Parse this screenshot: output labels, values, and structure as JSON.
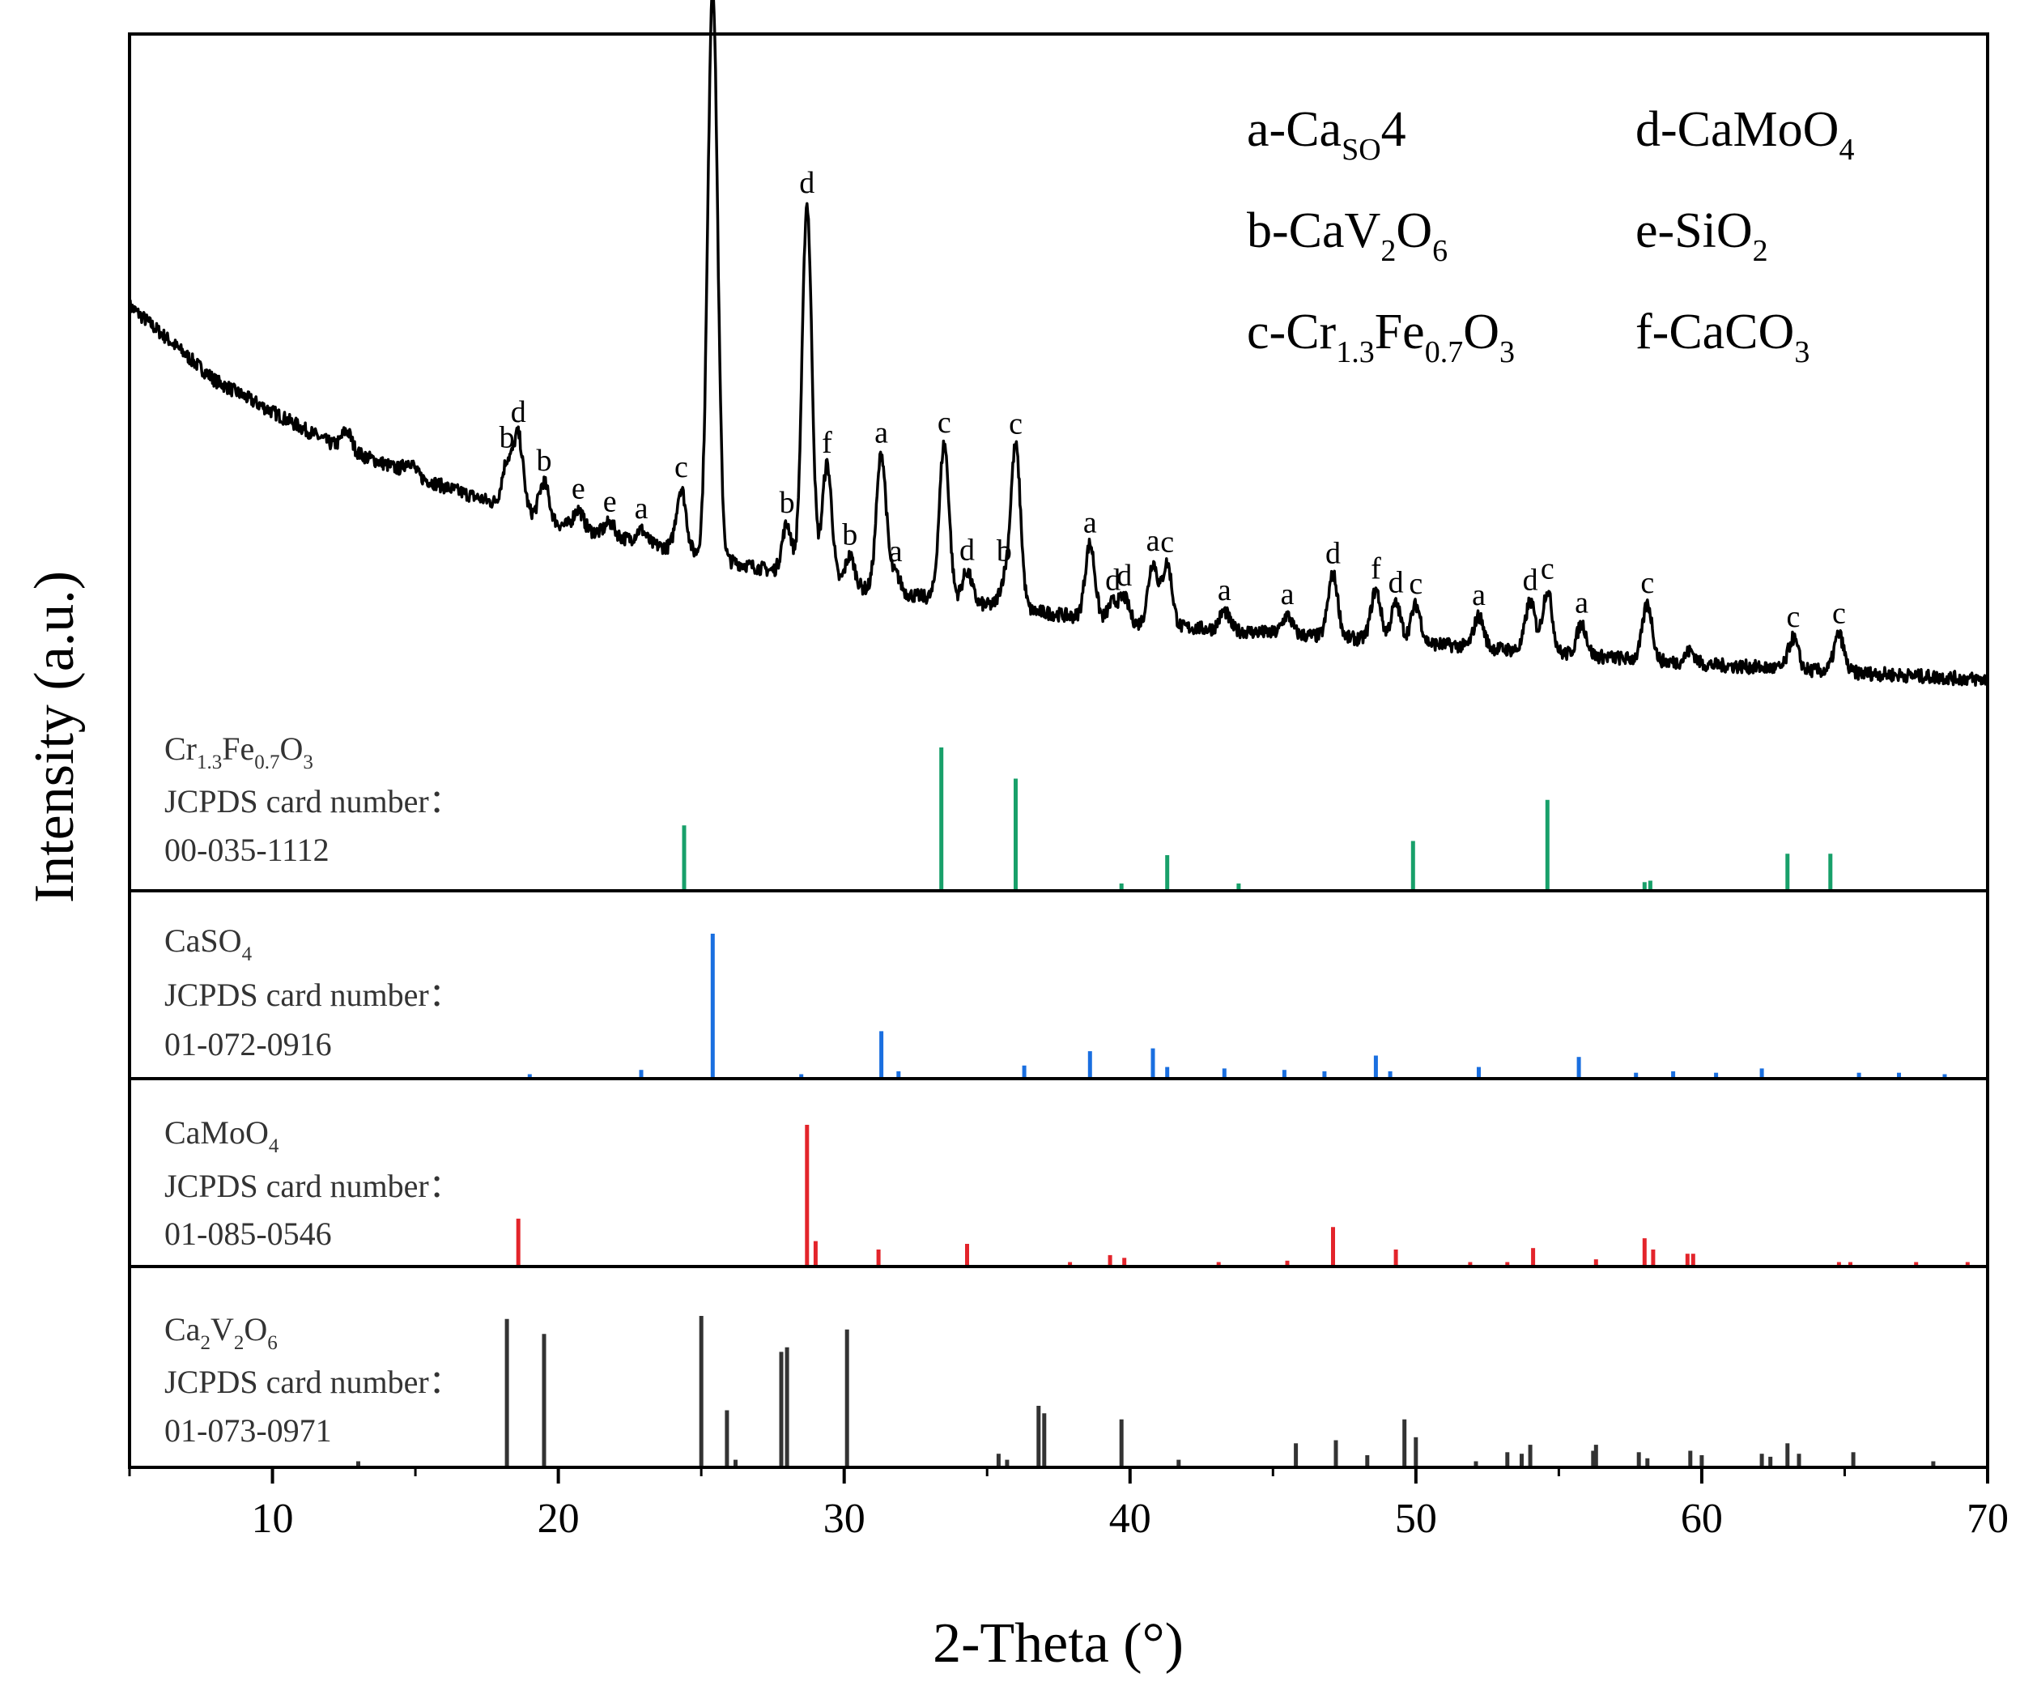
{
  "chart_data": {
    "type": "line",
    "xlabel": "2-Theta (°)",
    "ylabel": "Intensity (a.u.)",
    "xlim": [
      5,
      70
    ],
    "xticks": [
      "10",
      "20",
      "30",
      "40",
      "50",
      "60",
      "70"
    ],
    "legend": {
      "placement": "top-right",
      "entries": [
        {
          "letter": "a",
          "phase": [
            "Ca",
            "SO",
            "4"
          ]
        },
        {
          "letter": "d",
          "phase": [
            "CaMoO",
            "4"
          ]
        },
        {
          "letter": "b",
          "phase": [
            "CaV",
            "2",
            "O",
            "6"
          ]
        },
        {
          "letter": "e",
          "phase": [
            "SiO",
            "2"
          ]
        },
        {
          "letter": "c",
          "phase": [
            "Cr",
            "1.3",
            "Fe",
            "0.7",
            "O",
            "3"
          ]
        },
        {
          "letter": "f",
          "phase": [
            "CaCO",
            "3"
          ]
        }
      ]
    },
    "pattern": {
      "name": "sample XRD",
      "color": "#000000",
      "baseline": [
        [
          5,
          0.62
        ],
        [
          8,
          0.5
        ],
        [
          12,
          0.4
        ],
        [
          16,
          0.33
        ],
        [
          20,
          0.27
        ],
        [
          25,
          0.22
        ],
        [
          30,
          0.17
        ],
        [
          35,
          0.14
        ],
        [
          40,
          0.11
        ],
        [
          50,
          0.08
        ],
        [
          60,
          0.045
        ],
        [
          70,
          0.02
        ]
      ],
      "peaks": [
        {
          "x": 18.2,
          "h": 0.07,
          "label": "b"
        },
        {
          "x": 18.6,
          "h": 0.12,
          "label": "d"
        },
        {
          "x": 19.5,
          "h": 0.06,
          "label": "b"
        },
        {
          "x": 20.7,
          "h": 0.03,
          "label": "e"
        },
        {
          "x": 21.8,
          "h": 0.02,
          "label": "e"
        },
        {
          "x": 22.9,
          "h": 0.02,
          "label": "a"
        },
        {
          "x": 24.3,
          "h": 0.1,
          "label": "c"
        },
        {
          "x": 25.4,
          "h": 0.92,
          "label": "a"
        },
        {
          "x": 28.0,
          "h": 0.08,
          "label": "b"
        },
        {
          "x": 28.7,
          "h": 0.6,
          "label": "d"
        },
        {
          "x": 29.4,
          "h": 0.19,
          "label": "f"
        },
        {
          "x": 30.2,
          "h": 0.05,
          "label": "b"
        },
        {
          "x": 31.3,
          "h": 0.22,
          "label": "a"
        },
        {
          "x": 31.8,
          "h": 0.03,
          "label": "a"
        },
        {
          "x": 33.5,
          "h": 0.25,
          "label": "c"
        },
        {
          "x": 34.3,
          "h": 0.05,
          "label": "d"
        },
        {
          "x": 35.6,
          "h": 0.04,
          "label": "b"
        },
        {
          "x": 36.0,
          "h": 0.26,
          "label": "c"
        },
        {
          "x": 38.6,
          "h": 0.12,
          "label": "a"
        },
        {
          "x": 39.4,
          "h": 0.03,
          "label": "d"
        },
        {
          "x": 39.8,
          "h": 0.04,
          "label": "d"
        },
        {
          "x": 40.8,
          "h": 0.1,
          "label": "a"
        },
        {
          "x": 41.3,
          "h": 0.1,
          "label": "c"
        },
        {
          "x": 43.3,
          "h": 0.03,
          "label": "a"
        },
        {
          "x": 45.5,
          "h": 0.03,
          "label": "a"
        },
        {
          "x": 47.1,
          "h": 0.1,
          "label": "d"
        },
        {
          "x": 48.6,
          "h": 0.08,
          "label": "f"
        },
        {
          "x": 49.3,
          "h": 0.06,
          "label": "d"
        },
        {
          "x": 50.0,
          "h": 0.06,
          "label": "c"
        },
        {
          "x": 52.2,
          "h": 0.05,
          "label": "a"
        },
        {
          "x": 54.0,
          "h": 0.08,
          "label": "d"
        },
        {
          "x": 54.6,
          "h": 0.1,
          "label": "c"
        },
        {
          "x": 55.8,
          "h": 0.05,
          "label": "a"
        },
        {
          "x": 58.1,
          "h": 0.09,
          "label": "c"
        },
        {
          "x": 63.2,
          "h": 0.05,
          "label": "c"
        },
        {
          "x": 64.8,
          "h": 0.06,
          "label": "c"
        },
        {
          "x": 12.6,
          "h": 0.03,
          "label": ""
        },
        {
          "x": 14.8,
          "h": 0.02,
          "label": ""
        },
        {
          "x": 59.6,
          "h": 0.02,
          "label": ""
        }
      ]
    },
    "references": [
      {
        "phase": [
          "Cr",
          "1.3",
          "Fe",
          "0.7",
          "O",
          "3"
        ],
        "card_text": "JCPDS card number：",
        "card_number": "00-035-1112",
        "color": "#18a06a",
        "sticks": [
          [
            24.4,
            0.45
          ],
          [
            33.4,
            1.0
          ],
          [
            36.0,
            0.78
          ],
          [
            39.7,
            0.04
          ],
          [
            41.3,
            0.24
          ],
          [
            43.8,
            0.04
          ],
          [
            49.9,
            0.34
          ],
          [
            54.6,
            0.63
          ],
          [
            58.0,
            0.05
          ],
          [
            58.2,
            0.06
          ],
          [
            63.0,
            0.25
          ],
          [
            64.5,
            0.25
          ]
        ]
      },
      {
        "phase": [
          "CaSO",
          "4"
        ],
        "card_text": "JCPDS card number：",
        "card_number": "01-072-0916",
        "color": "#1a6fe0",
        "sticks": [
          [
            19.0,
            0.02
          ],
          [
            22.9,
            0.05
          ],
          [
            25.4,
            1.0
          ],
          [
            28.5,
            0.02
          ],
          [
            31.3,
            0.32
          ],
          [
            31.9,
            0.04
          ],
          [
            36.3,
            0.08
          ],
          [
            38.6,
            0.18
          ],
          [
            40.8,
            0.2
          ],
          [
            41.3,
            0.07
          ],
          [
            43.3,
            0.06
          ],
          [
            45.4,
            0.05
          ],
          [
            46.8,
            0.04
          ],
          [
            48.6,
            0.15
          ],
          [
            49.1,
            0.04
          ],
          [
            52.2,
            0.07
          ],
          [
            55.7,
            0.14
          ],
          [
            57.7,
            0.03
          ],
          [
            59.0,
            0.04
          ],
          [
            60.5,
            0.03
          ],
          [
            62.1,
            0.06
          ],
          [
            65.5,
            0.03
          ],
          [
            66.9,
            0.03
          ],
          [
            68.5,
            0.02
          ]
        ]
      },
      {
        "phase": [
          "CaMoO",
          "4"
        ],
        "card_text": "JCPDS card number：",
        "card_number": "01-085-0546",
        "color": "#e3242b",
        "sticks": [
          [
            18.6,
            0.33
          ],
          [
            28.7,
            1.0
          ],
          [
            29.0,
            0.17
          ],
          [
            31.2,
            0.11
          ],
          [
            34.3,
            0.15
          ],
          [
            37.9,
            0.02
          ],
          [
            39.3,
            0.07
          ],
          [
            39.8,
            0.05
          ],
          [
            43.1,
            0.02
          ],
          [
            45.5,
            0.03
          ],
          [
            47.1,
            0.27
          ],
          [
            49.3,
            0.11
          ],
          [
            51.9,
            0.02
          ],
          [
            53.2,
            0.02
          ],
          [
            54.1,
            0.12
          ],
          [
            56.3,
            0.04
          ],
          [
            58.0,
            0.19
          ],
          [
            58.3,
            0.11
          ],
          [
            59.5,
            0.08
          ],
          [
            59.7,
            0.08
          ],
          [
            64.8,
            0.02
          ],
          [
            65.2,
            0.02
          ],
          [
            67.5,
            0.02
          ],
          [
            69.3,
            0.02
          ]
        ]
      },
      {
        "phase": [
          "Ca",
          "2",
          "V",
          "2",
          "O",
          "6"
        ],
        "card_text": "JCPDS card number：",
        "card_number": "01-073-0971",
        "color": "#333333",
        "sticks": [
          [
            13.0,
            0.03
          ],
          [
            18.2,
            0.98
          ],
          [
            19.5,
            0.88
          ],
          [
            25.0,
            1.0
          ],
          [
            25.9,
            0.37
          ],
          [
            26.2,
            0.04
          ],
          [
            27.8,
            0.76
          ],
          [
            28.0,
            0.79
          ],
          [
            30.1,
            0.91
          ],
          [
            35.4,
            0.08
          ],
          [
            35.7,
            0.04
          ],
          [
            36.8,
            0.4
          ],
          [
            37.0,
            0.35
          ],
          [
            39.7,
            0.31
          ],
          [
            41.7,
            0.04
          ],
          [
            45.8,
            0.15
          ],
          [
            47.2,
            0.17
          ],
          [
            48.3,
            0.07
          ],
          [
            49.6,
            0.31
          ],
          [
            50.0,
            0.19
          ],
          [
            52.1,
            0.03
          ],
          [
            53.2,
            0.09
          ],
          [
            53.7,
            0.08
          ],
          [
            54.0,
            0.14
          ],
          [
            56.2,
            0.1
          ],
          [
            56.3,
            0.14
          ],
          [
            57.8,
            0.09
          ],
          [
            58.1,
            0.05
          ],
          [
            59.6,
            0.1
          ],
          [
            60.0,
            0.07
          ],
          [
            62.1,
            0.08
          ],
          [
            62.4,
            0.06
          ],
          [
            63.0,
            0.15
          ],
          [
            63.4,
            0.08
          ],
          [
            65.3,
            0.09
          ],
          [
            68.1,
            0.03
          ]
        ]
      }
    ]
  }
}
